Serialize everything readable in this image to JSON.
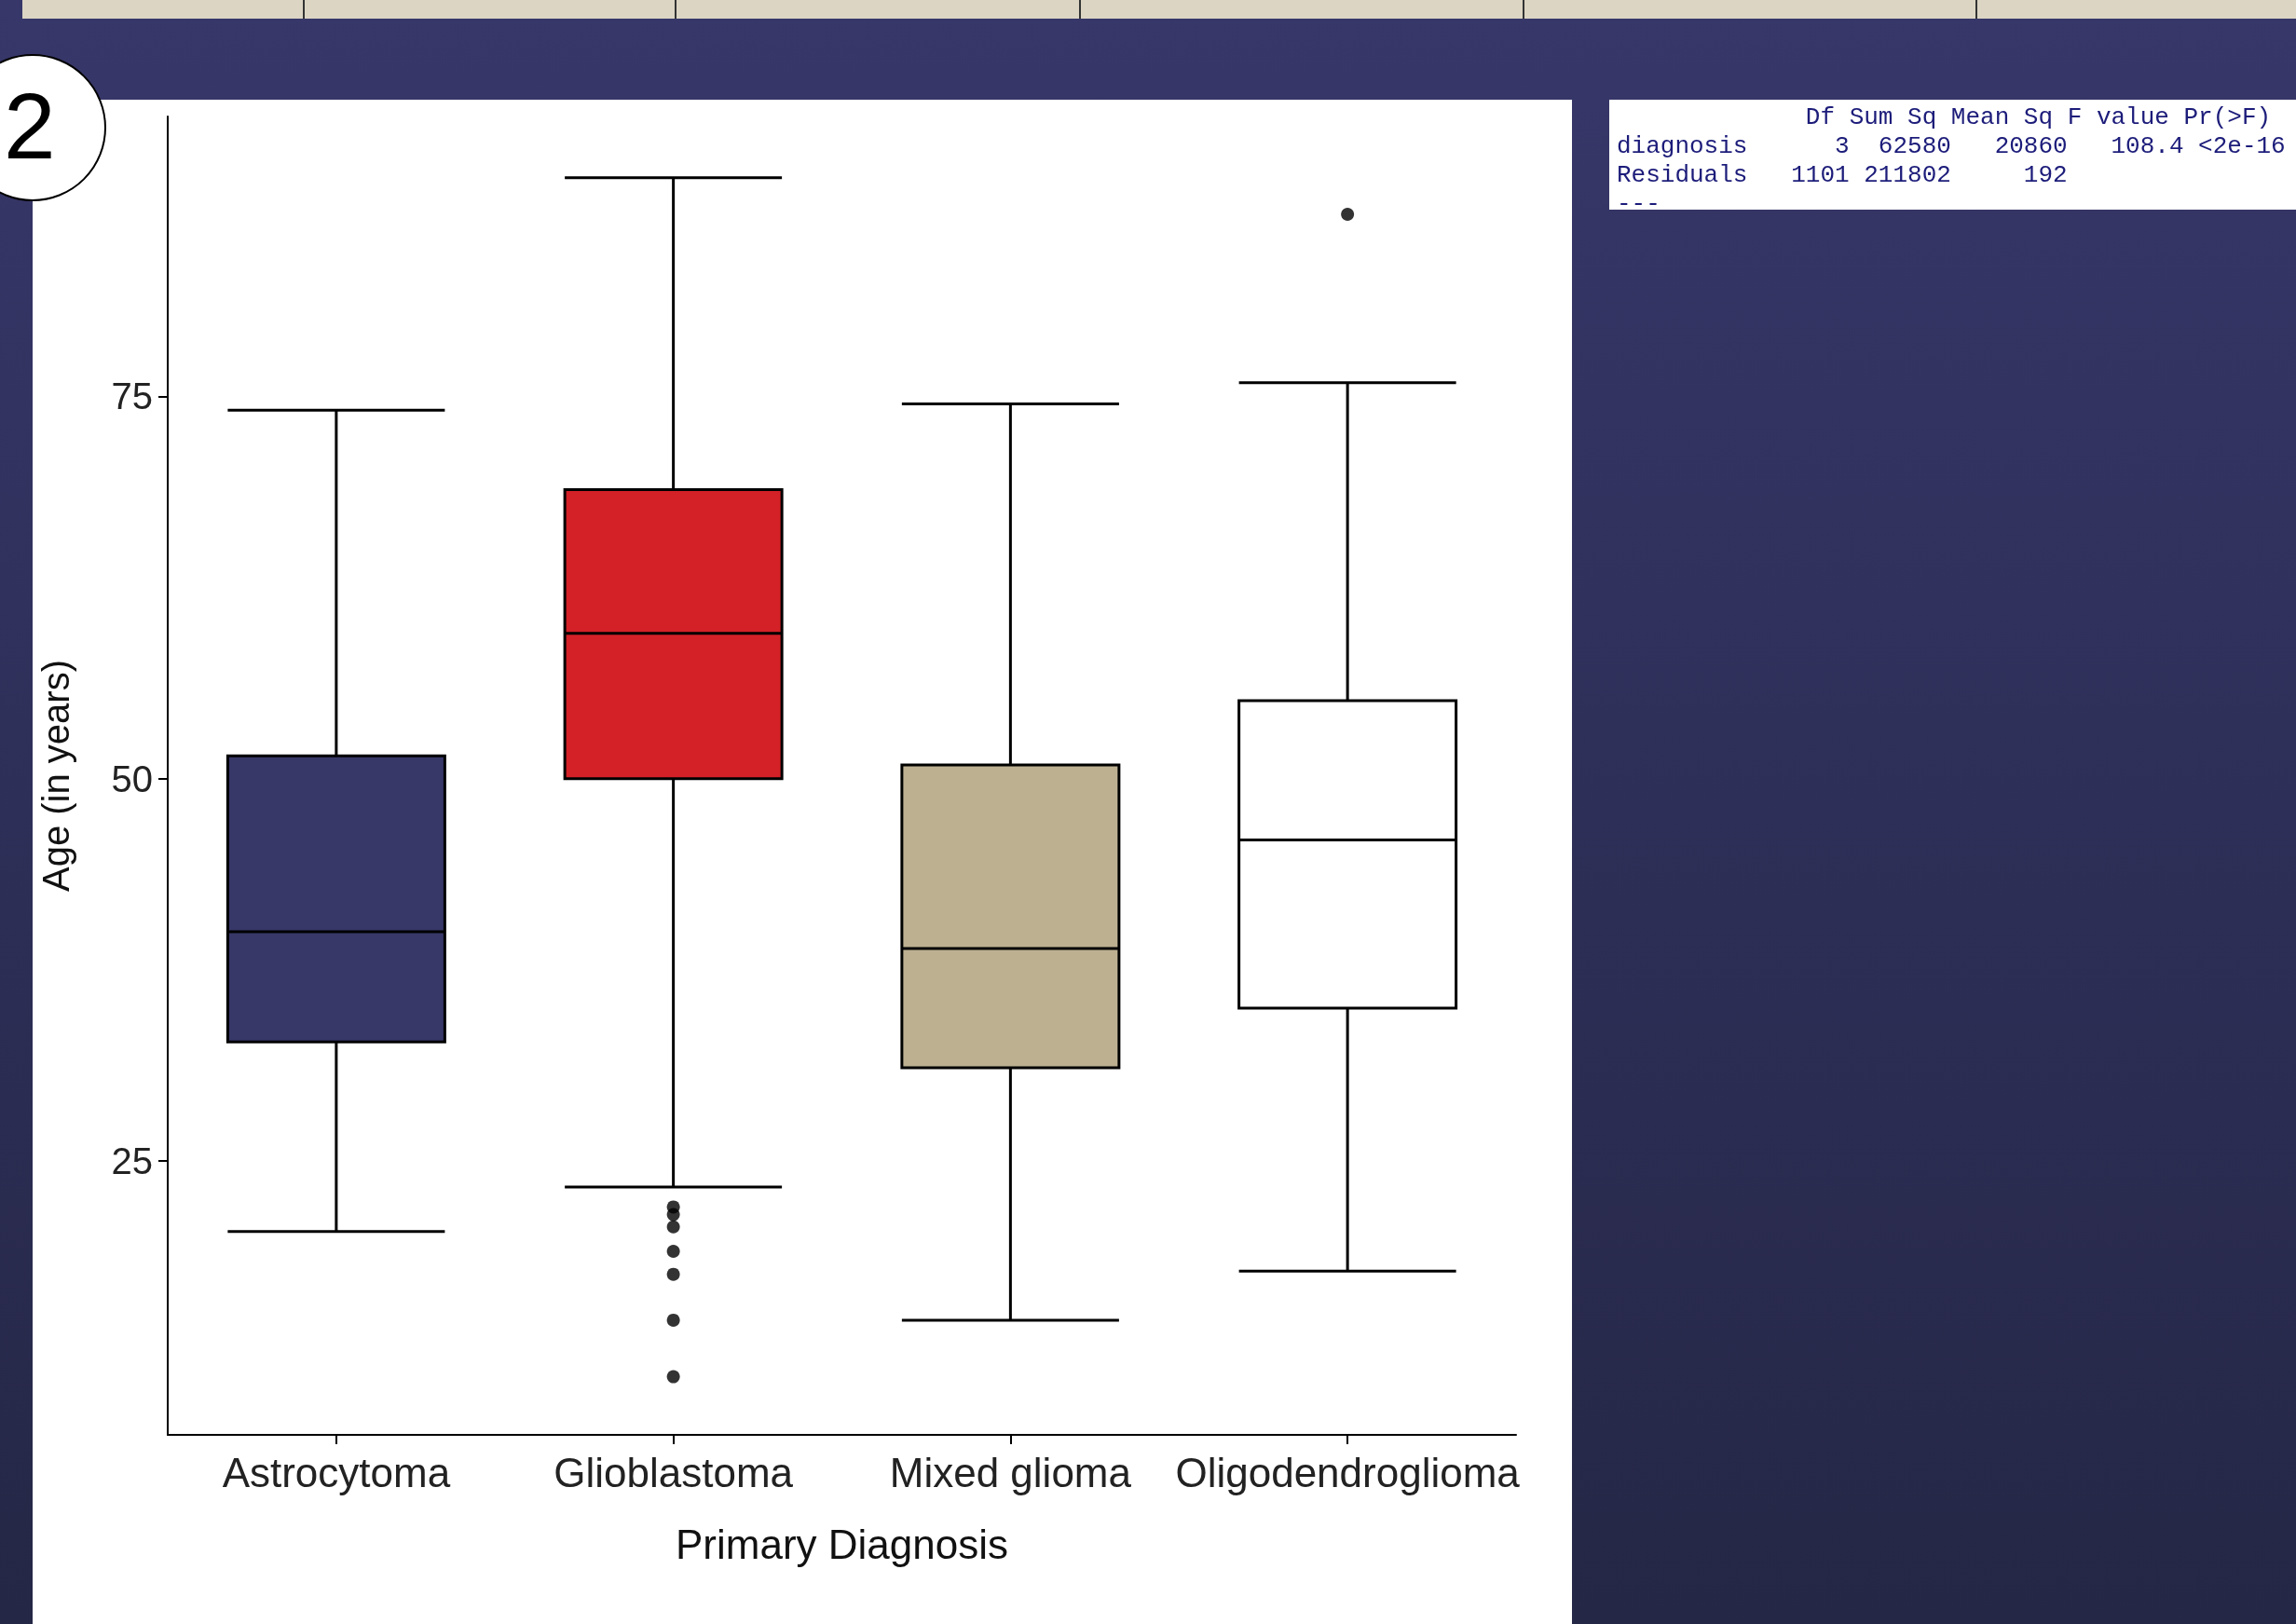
{
  "chart_data": {
    "type": "box",
    "xlabel": "Primary Diagnosis",
    "ylabel": "Age (in years)",
    "categories": [
      "Astrocytoma",
      "Glioblastoma",
      "Mixed glioma",
      "Oligodendroglioma"
    ],
    "colors": [
      "#373768",
      "#d42027",
      "#bcb091",
      "#ffffff"
    ],
    "boxes": [
      {
        "low": 20.4,
        "q1": 32.8,
        "median": 40.0,
        "q3": 51.5,
        "high": 74.1
      },
      {
        "low": 23.3,
        "q1": 50.0,
        "median": 59.5,
        "q3": 68.9,
        "high": 89.3,
        "outliers": [
          22.0,
          21.5,
          20.7,
          19.1,
          17.6,
          14.6,
          10.9
        ]
      },
      {
        "low": 14.6,
        "q1": 31.1,
        "median": 38.9,
        "q3": 50.9,
        "high": 74.5
      },
      {
        "low": 17.8,
        "q1": 35.0,
        "median": 46.0,
        "q3": 55.1,
        "high": 75.9,
        "outliers": [
          86.9
        ]
      }
    ],
    "ylim": [
      7.1,
      93.3
    ],
    "yticks": [
      25,
      50,
      75
    ],
    "grid": false,
    "annotations": [
      "2",
      "             Df Sum Sq Mean Sq F value Pr(>F)",
      "diagnosis      3  62580   20860   108.4 <2e-16",
      "Residuals   1101 211802     192",
      "---"
    ]
  }
}
